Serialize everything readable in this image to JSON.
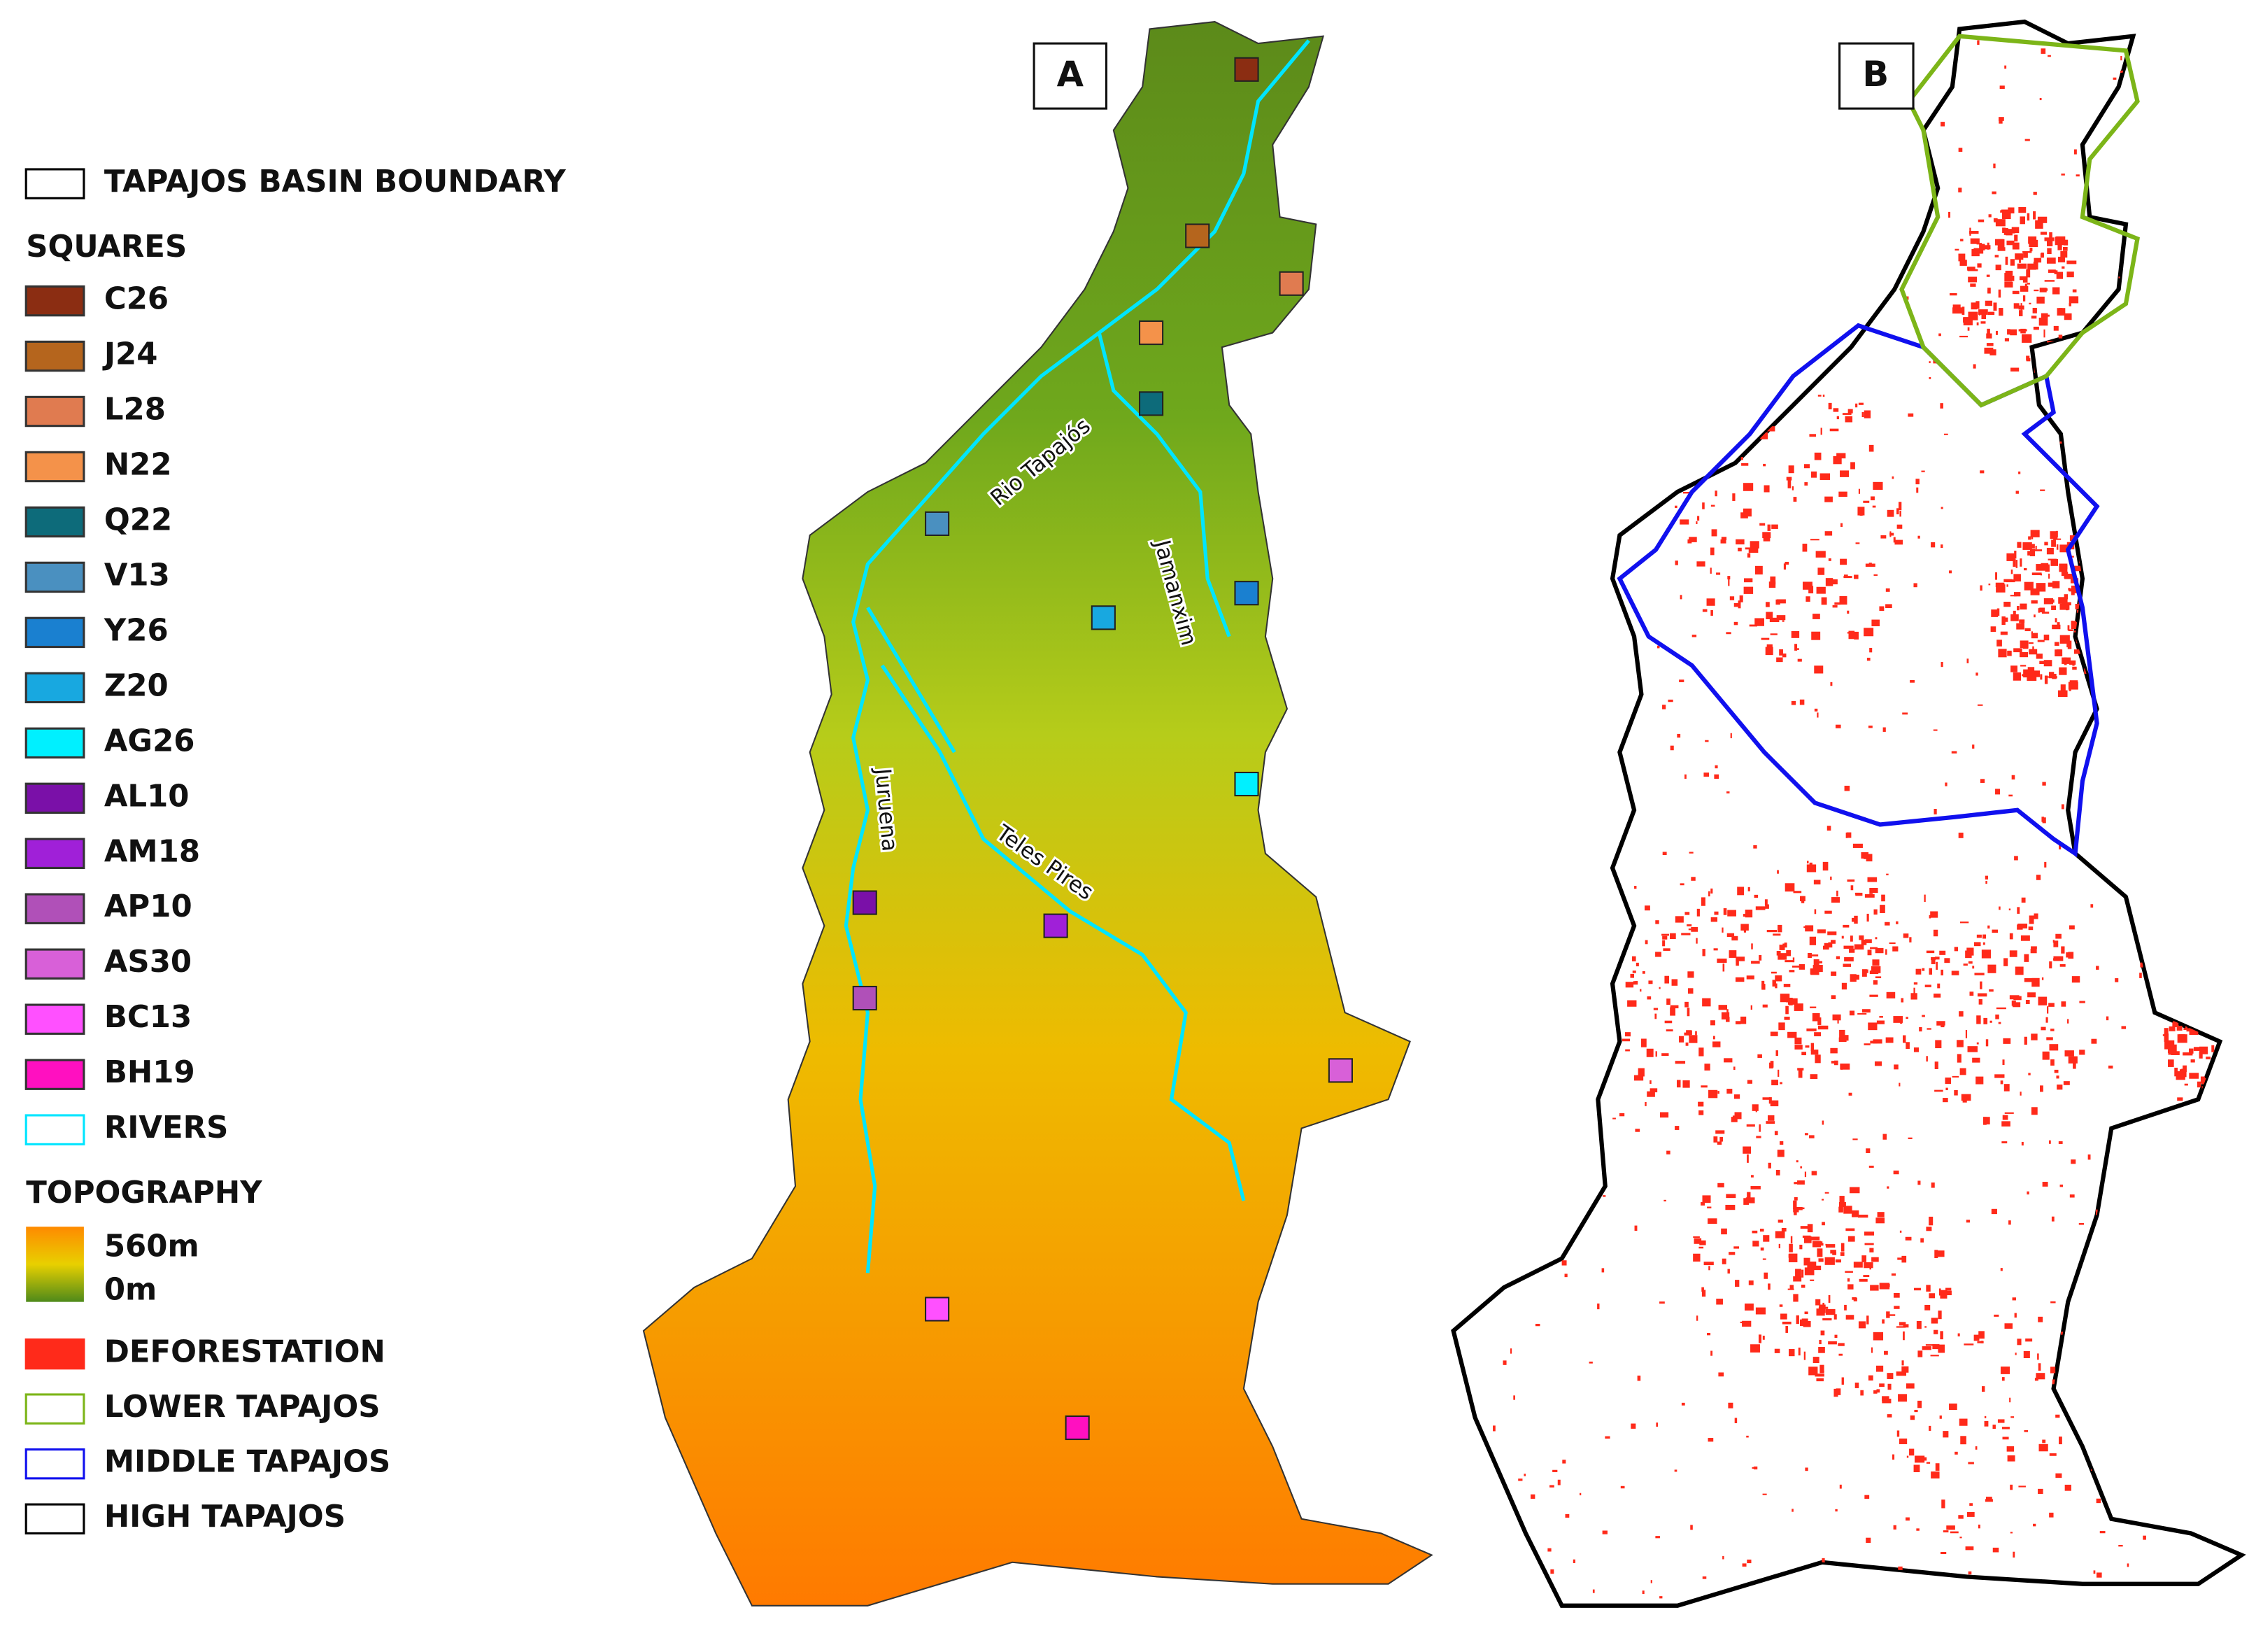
{
  "panels": [
    {
      "label": "A"
    },
    {
      "label": "B"
    }
  ],
  "legend": {
    "boundary": {
      "label": "TAPAJOS BASIN BOUNDARY"
    },
    "squares_title": "SQUARES",
    "squares": [
      {
        "label": "C26",
        "color": "#8b2d12"
      },
      {
        "label": "J24",
        "color": "#b5651d"
      },
      {
        "label": "L28",
        "color": "#e07b50"
      },
      {
        "label": "N22",
        "color": "#f4924a"
      },
      {
        "label": "Q22",
        "color": "#0d6b7a"
      },
      {
        "label": "V13",
        "color": "#4a90c0"
      },
      {
        "label": "Y26",
        "color": "#1a80d0"
      },
      {
        "label": "Z20",
        "color": "#18a8e0"
      },
      {
        "label": "AG26",
        "color": "#00f0ff"
      },
      {
        "label": "AL10",
        "color": "#7a10a8"
      },
      {
        "label": "AM18",
        "color": "#a020d8"
      },
      {
        "label": "AP10",
        "color": "#b050b8"
      },
      {
        "label": "AS30",
        "color": "#d860d8"
      },
      {
        "label": "BC13",
        "color": "#ff50ff"
      },
      {
        "label": "BH19",
        "color": "#ff10c0"
      }
    ],
    "rivers": {
      "label": "RIVERS",
      "color": "#00e5ff"
    },
    "topography": {
      "title": "TOPOGRAPHY",
      "max": "560m",
      "min": "0m"
    },
    "deforestation": {
      "label": "DEFORESTATION",
      "color": "#ff2a1a"
    },
    "regions": [
      {
        "label": "LOWER TAPAJOS",
        "color": "#7cb518"
      },
      {
        "label": "MIDDLE TAPAJOS",
        "color": "#1010ee"
      },
      {
        "label": "HIGH TAPAJOS",
        "color": "#000000"
      }
    ]
  },
  "river_labels": [
    "Rio Tapajós",
    "Jamanxim",
    "Juruena",
    "Teles Pires"
  ]
}
